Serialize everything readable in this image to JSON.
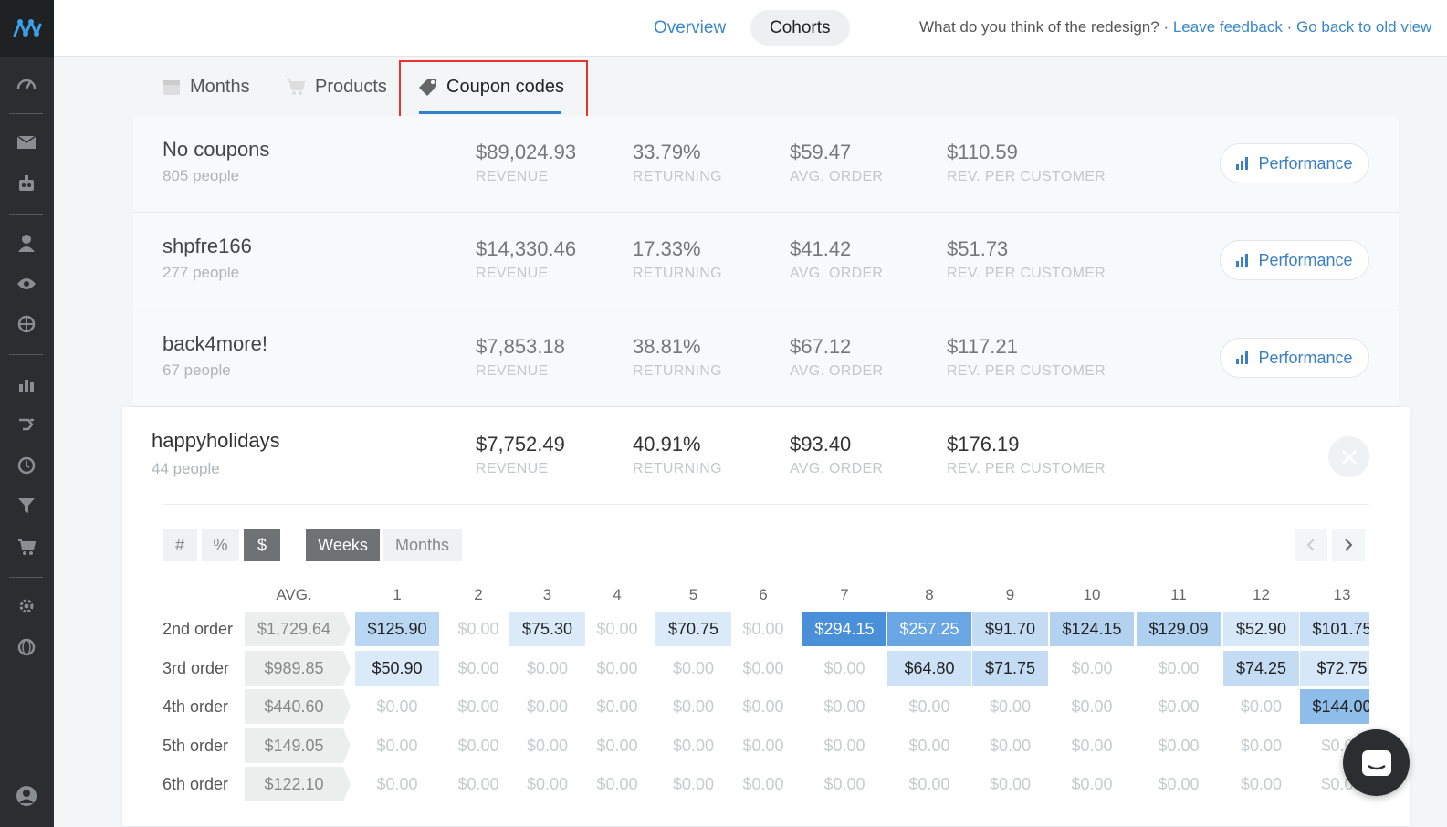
{
  "nav": {
    "overview_label": "Overview",
    "cohorts_label": "Cohorts",
    "feedback_prompt": "What do you think of the redesign? · ",
    "leave_feedback": "Leave feedback",
    "separator": " · ",
    "old_view": "Go back to old view"
  },
  "sidebar": {
    "icons": [
      "logo-icon",
      "dashboard-icon",
      "mail-icon",
      "robot-icon",
      "person-icon",
      "eye-icon",
      "crosshair-icon",
      "bar-chart-icon",
      "flow-icon",
      "history-icon",
      "funnel-icon",
      "cart-icon",
      "gear-icon",
      "globe-icon",
      "user-avatar-icon"
    ]
  },
  "subtabs": {
    "months": "Months",
    "products": "Products",
    "coupons": "Coupon codes",
    "active": "coupons"
  },
  "labels": {
    "revenue": "REVENUE",
    "returning": "RETURNING",
    "avg_order": "AVG. ORDER",
    "rev_per_customer": "REV. PER CUSTOMER",
    "performance": "Performance"
  },
  "coupons": [
    {
      "name": "No coupons",
      "people": "805 people",
      "revenue": "$89,024.93",
      "returning": "33.79%",
      "avg_order": "$59.47",
      "rev_per_customer": "$110.59"
    },
    {
      "name": "shpfre166",
      "people": "277 people",
      "revenue": "$14,330.46",
      "returning": "17.33%",
      "avg_order": "$41.42",
      "rev_per_customer": "$51.73"
    },
    {
      "name": "back4more!",
      "people": "67 people",
      "revenue": "$7,853.18",
      "returning": "38.81%",
      "avg_order": "$67.12",
      "rev_per_customer": "$117.21"
    }
  ],
  "expanded": {
    "name": "happyholidays",
    "people": "44 people",
    "revenue": "$7,752.49",
    "returning": "40.91%",
    "avg_order": "$93.40",
    "rev_per_customer": "$176.19",
    "mode_buttons": [
      "#",
      "%",
      "$"
    ],
    "mode_active": "$",
    "period_buttons": [
      "Weeks",
      "Months"
    ],
    "period_active": "Weeks",
    "avg_header": "AVG.",
    "columns": [
      "1",
      "2",
      "3",
      "4",
      "5",
      "6",
      "7",
      "8",
      "9",
      "10",
      "11",
      "12",
      "13"
    ],
    "rows": [
      {
        "label": "2nd order",
        "avg": "$1,729.64",
        "cells": [
          "$125.90",
          "$0.00",
          "$75.30",
          "$0.00",
          "$70.75",
          "$0.00",
          "$294.15",
          "$257.25",
          "$91.70",
          "$124.15",
          "$129.09",
          "$52.90",
          "$101.75"
        ]
      },
      {
        "label": "3rd order",
        "avg": "$989.85",
        "cells": [
          "$50.90",
          "$0.00",
          "$0.00",
          "$0.00",
          "$0.00",
          "$0.00",
          "$0.00",
          "$64.80",
          "$71.75",
          "$0.00",
          "$0.00",
          "$74.25",
          "$72.75"
        ]
      },
      {
        "label": "4th order",
        "avg": "$440.60",
        "cells": [
          "$0.00",
          "$0.00",
          "$0.00",
          "$0.00",
          "$0.00",
          "$0.00",
          "$0.00",
          "$0.00",
          "$0.00",
          "$0.00",
          "$0.00",
          "$0.00",
          "$144.00"
        ]
      },
      {
        "label": "5th order",
        "avg": "$149.05",
        "cells": [
          "$0.00",
          "$0.00",
          "$0.00",
          "$0.00",
          "$0.00",
          "$0.00",
          "$0.00",
          "$0.00",
          "$0.00",
          "$0.00",
          "$0.00",
          "$0.00",
          "$0.00"
        ]
      },
      {
        "label": "6th order",
        "avg": "$122.10",
        "cells": [
          "$0.00",
          "$0.00",
          "$0.00",
          "$0.00",
          "$0.00",
          "$0.00",
          "$0.00",
          "$0.00",
          "$0.00",
          "$0.00",
          "$0.00",
          "$0.00",
          "$0.00"
        ]
      }
    ]
  },
  "colors": {
    "accent": "#3a87c9",
    "highlight_border": "#e8332f",
    "heat_strong": "#4a90d9",
    "heat_mid": "#6aa6e3",
    "heat_light": "#b9d6f2",
    "heat_pale": "#dbeaf8"
  }
}
